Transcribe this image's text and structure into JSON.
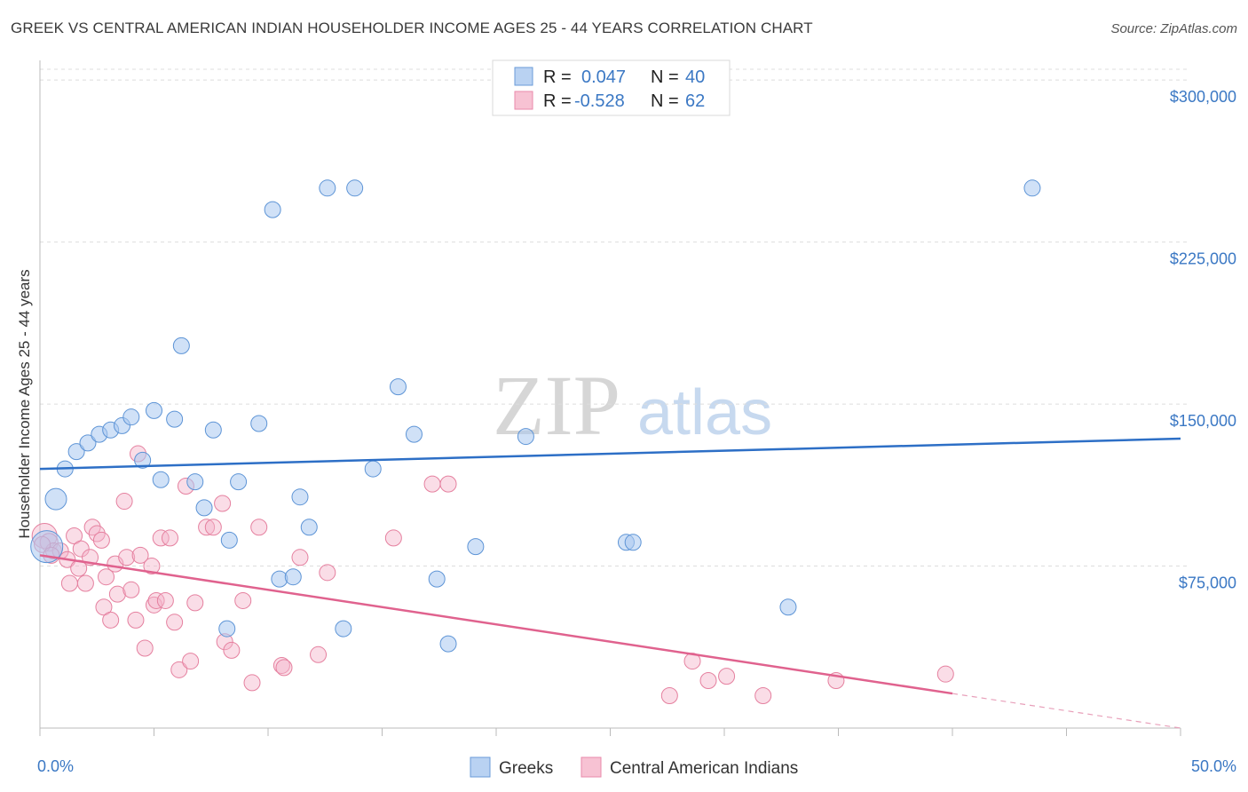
{
  "title": "GREEK VS CENTRAL AMERICAN INDIAN HOUSEHOLDER INCOME AGES 25 - 44 YEARS CORRELATION CHART",
  "source": "Source: ZipAtlas.com",
  "watermark_zip": "ZIP",
  "watermark_atlas": "atlas",
  "colors": {
    "blue": "#3a78c8",
    "pink": "#e0628e",
    "blue_fill": "#b9d2f2",
    "pink_fill": "#f7c2d3",
    "tick": "#3b78c4"
  },
  "legend": {
    "r_label": "R =",
    "n_label": "N =",
    "greeks": {
      "r": "0.047",
      "n": "40"
    },
    "cai": {
      "r": "-0.528",
      "n": "62"
    }
  },
  "bottom_legend": {
    "greeks": "Greeks",
    "cai": "Central American Indians"
  },
  "chart_data": {
    "type": "scatter",
    "title": "GREEK VS CENTRAL AMERICAN INDIAN HOUSEHOLDER INCOME AGES 25 - 44 YEARS CORRELATION CHART",
    "xlabel": "",
    "ylabel": "Householder Income Ages 25 - 44 years",
    "xlim": [
      0,
      50
    ],
    "ylim": [
      0,
      305000
    ],
    "x_tick_labels": [
      "0.0%",
      "50.0%"
    ],
    "y_ticks": [
      75000,
      150000,
      225000,
      300000
    ],
    "y_tick_labels": [
      "$75,000",
      "$150,000",
      "$225,000",
      "$300,000"
    ],
    "series": [
      {
        "name": "Greeks",
        "r": 0.047,
        "n": 40,
        "trend": {
          "x0": 0,
          "y0": 120000,
          "x1": 50,
          "y1": 134000
        },
        "points": [
          [
            0.3,
            84000,
            18
          ],
          [
            0.7,
            106000,
            12
          ],
          [
            1.1,
            120000,
            9
          ],
          [
            1.6,
            128000,
            9
          ],
          [
            2.1,
            132000,
            9
          ],
          [
            2.6,
            136000,
            9
          ],
          [
            3.1,
            138000,
            9
          ],
          [
            3.6,
            140000,
            9
          ],
          [
            4.0,
            144000,
            9
          ],
          [
            4.5,
            124000,
            9
          ],
          [
            5.0,
            147000,
            9
          ],
          [
            5.3,
            115000,
            9
          ],
          [
            5.9,
            143000,
            9
          ],
          [
            6.2,
            177000,
            9
          ],
          [
            6.8,
            114000,
            9
          ],
          [
            7.2,
            102000,
            9
          ],
          [
            7.6,
            138000,
            9
          ],
          [
            8.3,
            87000,
            9
          ],
          [
            8.7,
            114000,
            9
          ],
          [
            8.2,
            46000,
            9
          ],
          [
            9.6,
            141000,
            9
          ],
          [
            10.2,
            240000,
            9
          ],
          [
            10.5,
            69000,
            9
          ],
          [
            11.1,
            70000,
            9
          ],
          [
            11.4,
            107000,
            9
          ],
          [
            11.8,
            93000,
            9
          ],
          [
            12.6,
            250000,
            9
          ],
          [
            13.3,
            46000,
            9
          ],
          [
            13.8,
            250000,
            9
          ],
          [
            14.6,
            120000,
            9
          ],
          [
            15.7,
            158000,
            9
          ],
          [
            16.4,
            136000,
            9
          ],
          [
            17.4,
            69000,
            9
          ],
          [
            17.9,
            39000,
            9
          ],
          [
            19.1,
            84000,
            9
          ],
          [
            21.3,
            135000,
            9
          ],
          [
            25.7,
            86000,
            9
          ],
          [
            26.0,
            86000,
            9
          ],
          [
            32.8,
            56000,
            9
          ],
          [
            43.5,
            250000,
            9
          ]
        ]
      },
      {
        "name": "Central American Indians",
        "r": -0.528,
        "n": 62,
        "trend": {
          "x0": 0,
          "y0": 80000,
          "x1": 40,
          "y1": 16000,
          "dash_x1": 50,
          "dash_y1": 0
        },
        "points": [
          [
            0.2,
            89000,
            14
          ],
          [
            0.4,
            86000,
            10
          ],
          [
            0.6,
            82000,
            9
          ],
          [
            0.9,
            82000,
            9
          ],
          [
            1.2,
            78000,
            9
          ],
          [
            1.3,
            67000,
            9
          ],
          [
            1.5,
            89000,
            9
          ],
          [
            1.7,
            74000,
            9
          ],
          [
            1.8,
            83000,
            9
          ],
          [
            2.0,
            67000,
            9
          ],
          [
            2.2,
            79000,
            9
          ],
          [
            2.3,
            93000,
            9
          ],
          [
            2.5,
            90000,
            9
          ],
          [
            2.7,
            87000,
            9
          ],
          [
            2.8,
            56000,
            9
          ],
          [
            2.9,
            70000,
            9
          ],
          [
            3.1,
            50000,
            9
          ],
          [
            3.3,
            76000,
            9
          ],
          [
            3.4,
            62000,
            9
          ],
          [
            3.7,
            105000,
            9
          ],
          [
            3.8,
            79000,
            9
          ],
          [
            4.0,
            64000,
            9
          ],
          [
            4.2,
            50000,
            9
          ],
          [
            4.3,
            127000,
            9
          ],
          [
            4.4,
            80000,
            9
          ],
          [
            4.6,
            37000,
            9
          ],
          [
            4.9,
            75000,
            9
          ],
          [
            5.0,
            57000,
            9
          ],
          [
            5.1,
            59000,
            9
          ],
          [
            5.3,
            88000,
            9
          ],
          [
            5.5,
            59000,
            9
          ],
          [
            5.7,
            88000,
            9
          ],
          [
            5.9,
            49000,
            9
          ],
          [
            6.1,
            27000,
            9
          ],
          [
            6.4,
            112000,
            9
          ],
          [
            6.6,
            31000,
            9
          ],
          [
            6.8,
            58000,
            9
          ],
          [
            7.3,
            93000,
            9
          ],
          [
            7.6,
            93000,
            9
          ],
          [
            8.0,
            104000,
            9
          ],
          [
            8.1,
            40000,
            9
          ],
          [
            8.4,
            36000,
            9
          ],
          [
            8.9,
            59000,
            9
          ],
          [
            9.3,
            21000,
            9
          ],
          [
            9.6,
            93000,
            9
          ],
          [
            10.6,
            29000,
            9
          ],
          [
            10.7,
            28000,
            9
          ],
          [
            11.4,
            79000,
            9
          ],
          [
            12.2,
            34000,
            9
          ],
          [
            12.6,
            72000,
            9
          ],
          [
            15.5,
            88000,
            9
          ],
          [
            17.2,
            113000,
            9
          ],
          [
            17.9,
            113000,
            9
          ],
          [
            27.6,
            15000,
            9
          ],
          [
            28.6,
            31000,
            9
          ],
          [
            29.3,
            22000,
            9
          ],
          [
            30.1,
            24000,
            9
          ],
          [
            31.7,
            15000,
            9
          ],
          [
            34.9,
            22000,
            9
          ],
          [
            39.7,
            25000,
            9
          ],
          [
            0.1,
            85000,
            9
          ],
          [
            0.5,
            80000,
            9
          ]
        ]
      }
    ]
  }
}
